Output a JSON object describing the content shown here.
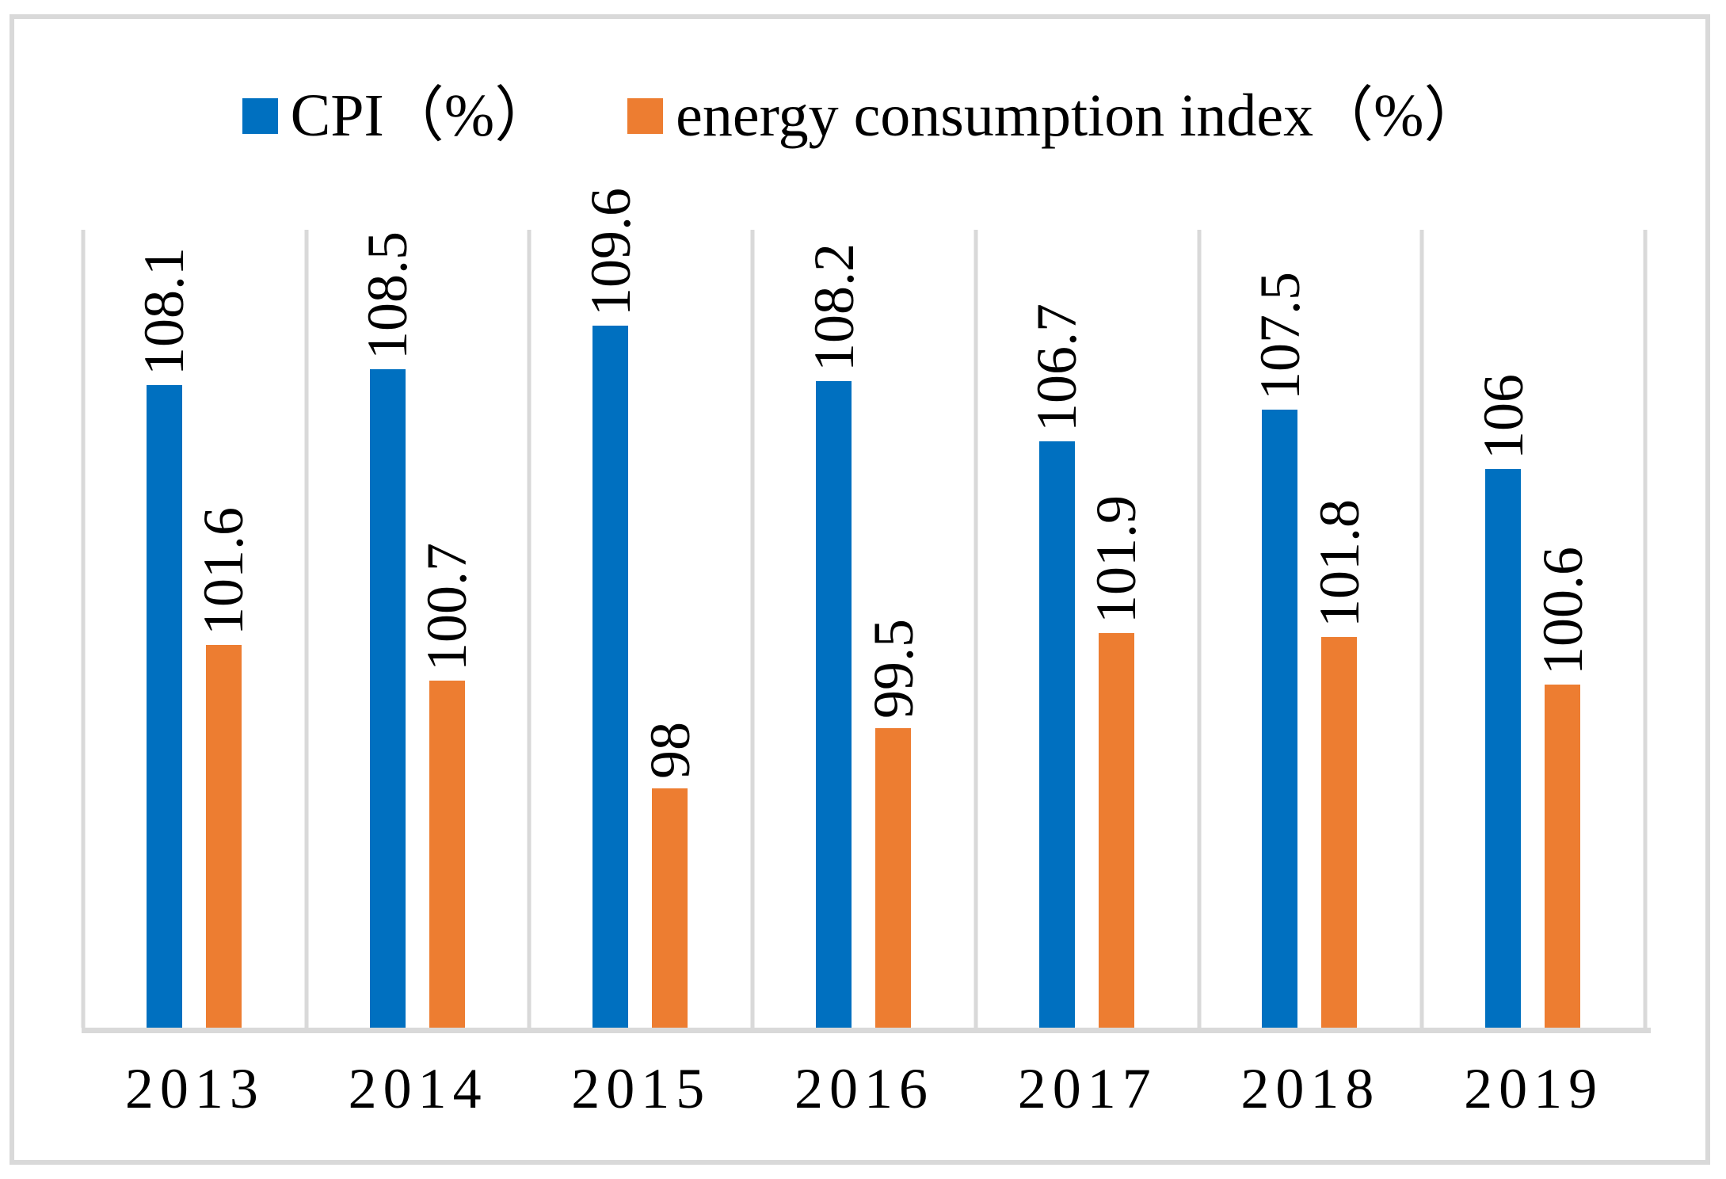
{
  "chart_data": {
    "type": "bar",
    "title": "",
    "xlabel": "",
    "ylabel": "",
    "categories": [
      "2013",
      "2014",
      "2015",
      "2016",
      "2017",
      "2018",
      "2019"
    ],
    "series": [
      {
        "name": "CPI（%）",
        "color": "#0070C0",
        "values": [
          108.1,
          108.5,
          109.6,
          108.2,
          106.7,
          107.5,
          106
        ],
        "labels": [
          "108.1",
          "108.5",
          "109.6",
          "108.2",
          "106.7",
          "107.5",
          "106"
        ]
      },
      {
        "name": "energy consumption index（%）",
        "color": "#ED7D31",
        "values": [
          101.6,
          100.7,
          98,
          99.5,
          101.9,
          101.8,
          100.6
        ],
        "labels": [
          "101.6",
          "100.7",
          "98",
          "99.5",
          "101.9",
          "101.8",
          "100.6"
        ]
      }
    ],
    "ylim": [
      92,
      112
    ],
    "legend_position": "top-center",
    "grid": "vertical-category-separators",
    "gridline_color": "#D9D9D9",
    "axis_color": "#D9D9D9",
    "data_labels": "rotated-90deg-above-bars",
    "value_axis_visible": false
  }
}
